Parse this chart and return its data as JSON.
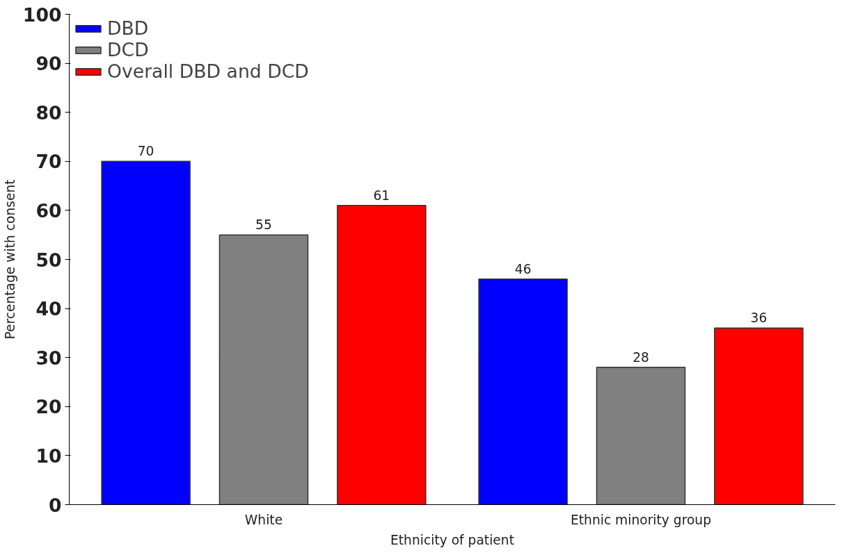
{
  "chart_data": {
    "type": "bar",
    "xlabel": "Ethnicity of patient",
    "ylabel": "Percentage with consent",
    "categories": [
      "White",
      "Ethnic minority group"
    ],
    "series": [
      {
        "name": "DBD",
        "color": "#0000ff",
        "values": [
          70,
          46
        ]
      },
      {
        "name": "DCD",
        "color": "#808080",
        "values": [
          55,
          28
        ]
      },
      {
        "name": "Overall DBD and DCD",
        "color": "#ff0000",
        "values": [
          61,
          36
        ]
      }
    ],
    "ylim": [
      0,
      100
    ],
    "yticks": [
      0,
      10,
      20,
      30,
      40,
      50,
      60,
      70,
      80,
      90,
      100
    ],
    "data_labels": true,
    "grid": false,
    "legend": "top left"
  }
}
